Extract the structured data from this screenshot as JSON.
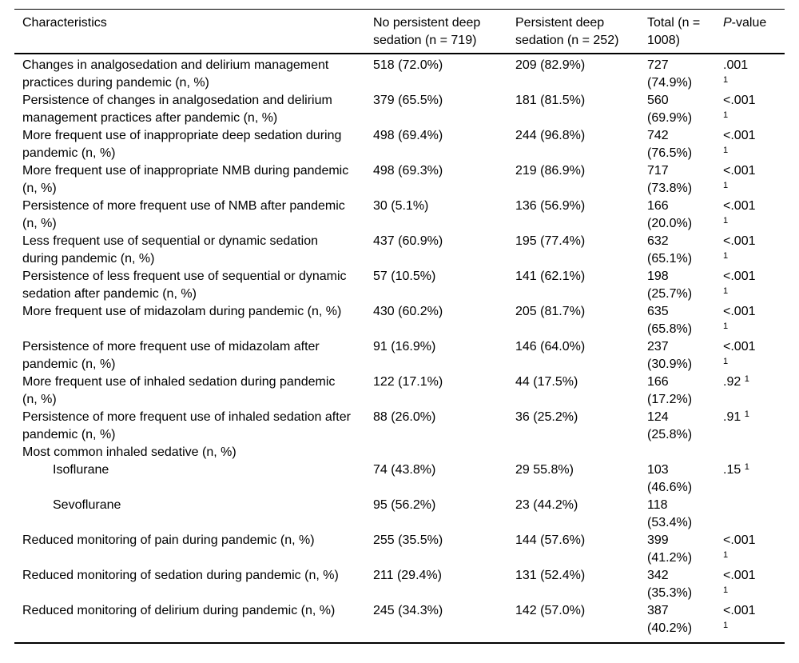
{
  "table": {
    "header": {
      "characteristics": "Characteristics",
      "no_deep": "No persistent deep sedation (n = 719)",
      "deep": "Persistent deep sedation (n = 252)",
      "total": "Total (n = 1008)",
      "p_italic": "P",
      "p_suffix": "-value"
    },
    "rows": [
      {
        "label": "Changes in analgosedation and delirium management practices during pandemic (n, %)",
        "no_deep": "518 (72.0%)",
        "deep": "209 (82.9%)",
        "total": "727 (74.9%)",
        "p": ".001",
        "sup": "1",
        "indent": false
      },
      {
        "label": "Persistence of changes in analgosedation and delirium management practices after pandemic (n, %)",
        "no_deep": "379 (65.5%)",
        "deep": "181 (81.5%)",
        "total": "560 (69.9%)",
        "p": "<.001",
        "sup": "1",
        "indent": false
      },
      {
        "label": "More frequent use of inappropriate deep sedation during pandemic (n, %)",
        "no_deep": "498 (69.4%)",
        "deep": "244 (96.8%)",
        "total": "742 (76.5%)",
        "p": "<.001",
        "sup": "1",
        "indent": false
      },
      {
        "label": "More frequent use of inappropriate NMB during pandemic (n, %)",
        "no_deep": "498 (69.3%)",
        "deep": "219 (86.9%)",
        "total": "717 (73.8%)",
        "p": "<.001",
        "sup": "1",
        "indent": false
      },
      {
        "label": "Persistence of more frequent use of NMB after pandemic (n, %)",
        "no_deep": "30 (5.1%)",
        "deep": "136 (56.9%)",
        "total": "166 (20.0%)",
        "p": "<.001",
        "sup": "1",
        "indent": false
      },
      {
        "label": "Less frequent use of sequential or dynamic sedation during pandemic (n, %)",
        "no_deep": "437 (60.9%)",
        "deep": "195 (77.4%)",
        "total": "632 (65.1%)",
        "p": "<.001",
        "sup": "1",
        "indent": false
      },
      {
        "label": "Persistence of less frequent use of sequential or dynamic sedation after pandemic (n, %)",
        "no_deep": "57 (10.5%)",
        "deep": "141 (62.1%)",
        "total": "198 (25.7%)",
        "p": "<.001",
        "sup": "1",
        "indent": false
      },
      {
        "label": "More frequent use of midazolam during pandemic (n, %)",
        "no_deep": "430 (60.2%)",
        "deep": "205 (81.7%)",
        "total": "635 (65.8%)",
        "p": "<.001",
        "sup": "1",
        "indent": false
      },
      {
        "label": "Persistence of more frequent use of midazolam after pandemic (n, %)",
        "no_deep": "91 (16.9%)",
        "deep": "146 (64.0%)",
        "total": "237 (30.9%)",
        "p": "<.001",
        "sup": "1",
        "indent": false
      },
      {
        "label": "More frequent use of inhaled sedation during pandemic (n, %)",
        "no_deep": "122 (17.1%)",
        "deep": "44 (17.5%)",
        "total": "166 (17.2%)",
        "p": ".92",
        "sup": "1",
        "indent": false
      },
      {
        "label": "Persistence of more frequent use of inhaled sedation after pandemic (n, %)",
        "no_deep": "88 (26.0%)",
        "deep": "36 (25.2%)",
        "total": "124 (25.8%)",
        "p": ".91",
        "sup": "1",
        "indent": false
      },
      {
        "label": "Most common inhaled sedative (n, %)",
        "no_deep": "",
        "deep": "",
        "total": "",
        "p": "",
        "sup": "",
        "indent": false
      },
      {
        "label": "Isoflurane",
        "no_deep": "74 (43.8%)",
        "deep": "29 55.8%)",
        "total": "103 (46.6%)",
        "p": ".15",
        "sup": "1",
        "indent": true
      },
      {
        "label": "Sevoflurane",
        "no_deep": "95 (56.2%)",
        "deep": "23 (44.2%)",
        "total": "118 (53.4%)",
        "p": "",
        "sup": "",
        "indent": true
      },
      {
        "label": "Reduced monitoring of pain during pandemic (n, %)",
        "no_deep": "255 (35.5%)",
        "deep": "144 (57.6%)",
        "total": "399 (41.2%)",
        "p": "<.001",
        "sup": "1",
        "indent": false
      },
      {
        "label": "Reduced monitoring of sedation during pandemic (n, %)",
        "no_deep": "211 (29.4%)",
        "deep": "131 (52.4%)",
        "total": "342 (35.3%)",
        "p": "<.001",
        "sup": "1",
        "indent": false
      },
      {
        "label": "Reduced monitoring of delirium during pandemic (n, %)",
        "no_deep": "245 (34.3%)",
        "deep": "142 (57.0%)",
        "total": "387 (40.2%)",
        "p": "<.001",
        "sup": "1",
        "indent": false
      }
    ]
  }
}
